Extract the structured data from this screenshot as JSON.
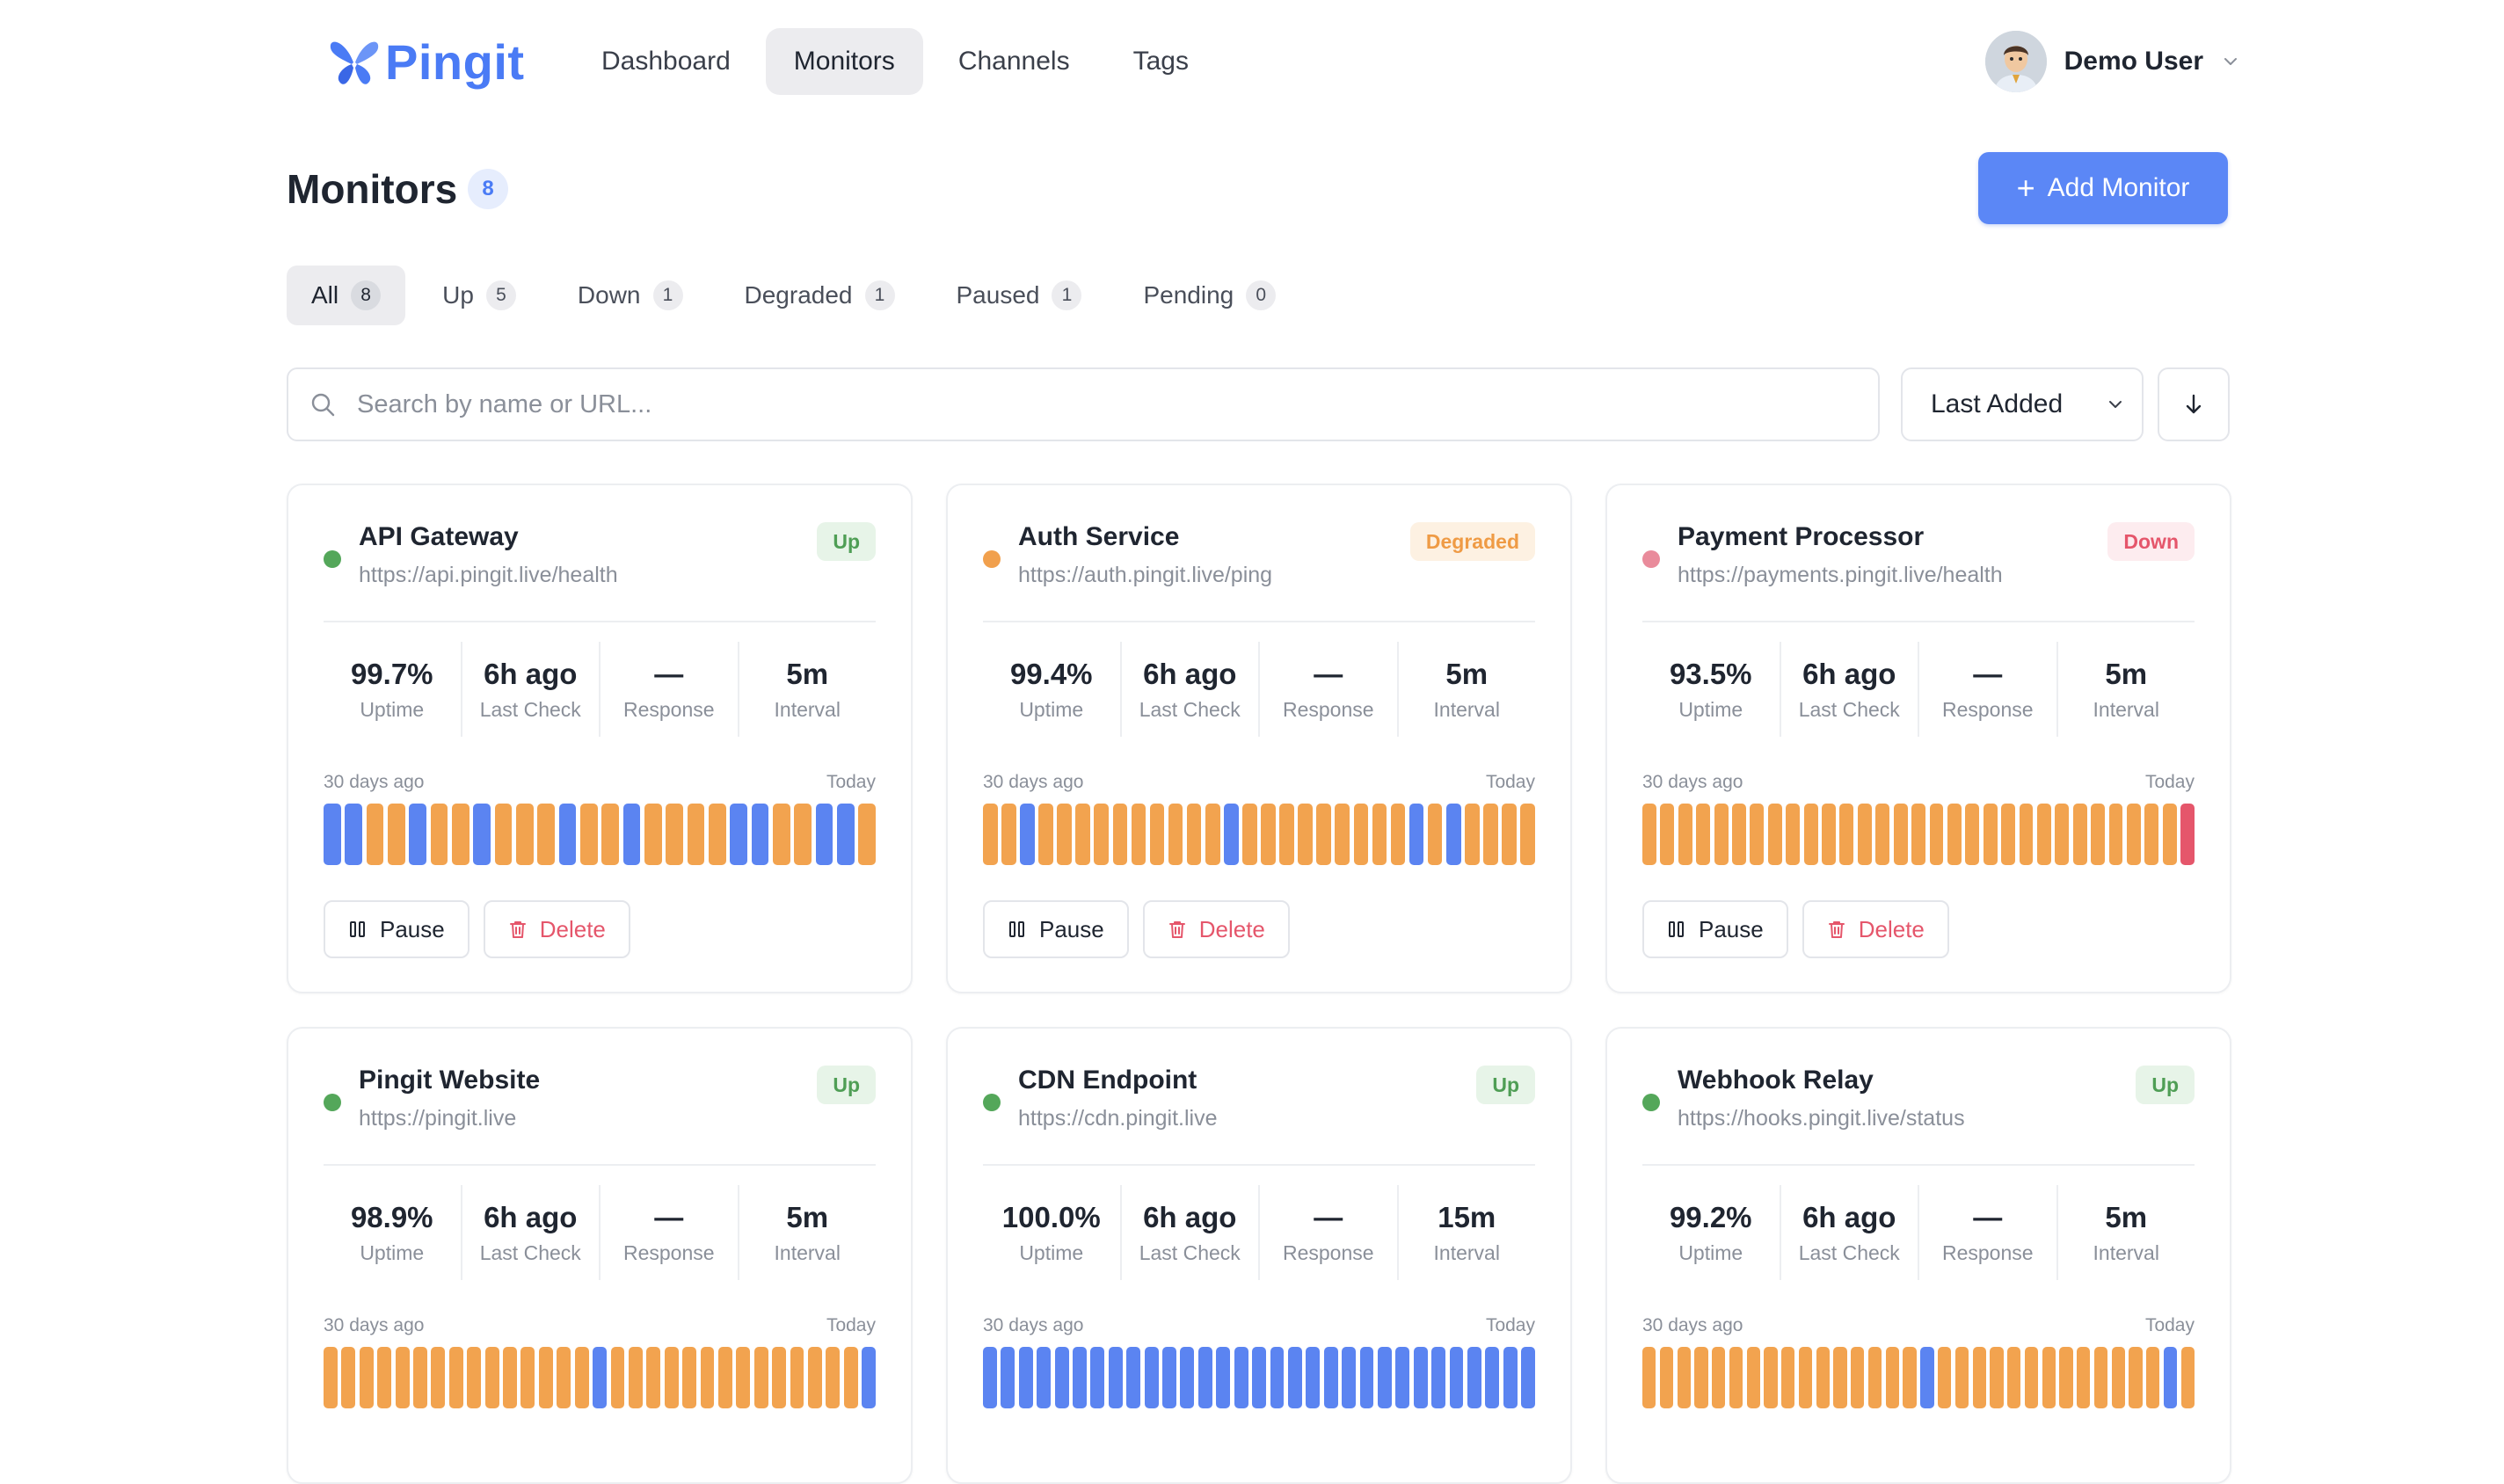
{
  "app": {
    "name": "Pingit",
    "brand_color": "#4a7bf5"
  },
  "nav": {
    "items": [
      {
        "label": "Dashboard",
        "active": false
      },
      {
        "label": "Monitors",
        "active": true
      },
      {
        "label": "Channels",
        "active": false
      },
      {
        "label": "Tags",
        "active": false
      }
    ]
  },
  "user": {
    "name": "Demo User"
  },
  "header": {
    "title": "Monitors",
    "count": "8",
    "add_label": "Add Monitor"
  },
  "filters": [
    {
      "label": "All",
      "count": "8",
      "active": true
    },
    {
      "label": "Up",
      "count": "5",
      "active": false
    },
    {
      "label": "Down",
      "count": "1",
      "active": false
    },
    {
      "label": "Degraded",
      "count": "1",
      "active": false
    },
    {
      "label": "Paused",
      "count": "1",
      "active": false
    },
    {
      "label": "Pending",
      "count": "0",
      "active": false
    }
  ],
  "search": {
    "placeholder": "Search by name or URL..."
  },
  "sort": {
    "value": "Last Added"
  },
  "labels": {
    "uptime": "Uptime",
    "last_check": "Last Check",
    "response": "Response",
    "interval": "Interval",
    "range_start": "30 days ago",
    "range_end": "Today",
    "pause": "Pause",
    "delete": "Delete"
  },
  "status_colors": {
    "up": "#54a75a",
    "degraded": "#f1a04d",
    "down": "#e98b9b",
    "bar_blue": "#5b84f1",
    "bar_orange": "#f2a34f",
    "bar_red": "#e5566b"
  },
  "monitors": [
    {
      "name": "API Gateway",
      "url": "https://api.pingit.live/health",
      "status": "Up",
      "uptime": "99.7%",
      "last_check": "6h ago",
      "response": "—",
      "interval": "5m",
      "history": "bbooboobooobooboooobboobbo"
    },
    {
      "name": "Auth Service",
      "url": "https://auth.pingit.live/ping",
      "status": "Degraded",
      "uptime": "99.4%",
      "last_check": "6h ago",
      "response": "—",
      "interval": "5m",
      "history": "oobooooooooooboooooooooboboooo"
    },
    {
      "name": "Payment Processor",
      "url": "https://payments.pingit.live/health",
      "status": "Down",
      "uptime": "93.5%",
      "last_check": "6h ago",
      "response": "—",
      "interval": "5m",
      "history": "oooooooooooooooooooooooooooooor"
    },
    {
      "name": "Pingit Website",
      "url": "https://pingit.live",
      "status": "Up",
      "uptime": "98.9%",
      "last_check": "6h ago",
      "response": "—",
      "interval": "5m",
      "history": "oooooooooooooooboooooooooooooob"
    },
    {
      "name": "CDN Endpoint",
      "url": "https://cdn.pingit.live",
      "status": "Up",
      "uptime": "100.0%",
      "last_check": "6h ago",
      "response": "—",
      "interval": "15m",
      "history": "bbbbbbbbbbbbbbbbbbbbbbbbbbbbbbb"
    },
    {
      "name": "Webhook Relay",
      "url": "https://hooks.pingit.live/status",
      "status": "Up",
      "uptime": "99.2%",
      "last_check": "6h ago",
      "response": "—",
      "interval": "5m",
      "history": "oooooooooooooooobooooooooooooobo"
    }
  ]
}
